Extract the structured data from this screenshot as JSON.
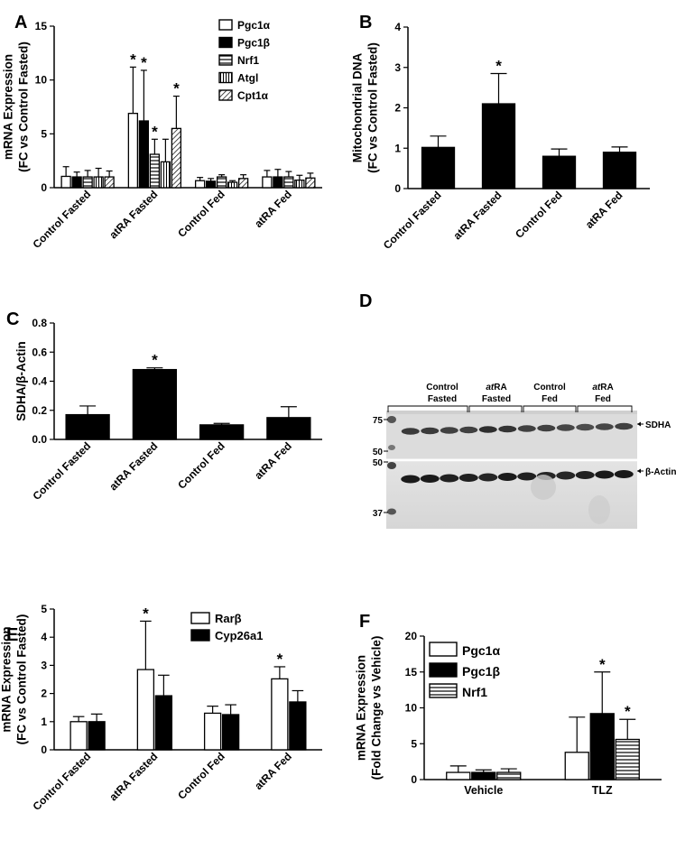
{
  "chart_data": [
    {
      "panel": "A",
      "type": "bar",
      "ylabel": [
        "mRNA Expression",
        "(FC vs Control Fasted)"
      ],
      "ylim": [
        0,
        15
      ],
      "yticks": [
        0,
        5,
        10,
        15
      ],
      "categories": [
        "Control Fasted",
        "atRA Fasted",
        "Control Fed",
        "atRA Fed"
      ],
      "series": [
        {
          "name": "Pgc1α",
          "fill": "white",
          "values": [
            1.05,
            6.9,
            0.65,
            1.0
          ],
          "errors": [
            0.9,
            4.3,
            0.3,
            0.6
          ],
          "sig": [
            false,
            true,
            false,
            false
          ]
        },
        {
          "name": "Pgc1β",
          "fill": "black",
          "values": [
            1.0,
            6.2,
            0.6,
            1.0
          ],
          "errors": [
            0.45,
            4.7,
            0.25,
            0.7
          ],
          "sig": [
            false,
            true,
            false,
            false
          ]
        },
        {
          "name": "Nrf1",
          "fill": "hlines",
          "values": [
            1.0,
            3.1,
            1.0,
            1.0
          ],
          "errors": [
            0.6,
            1.4,
            0.2,
            0.5
          ],
          "sig": [
            false,
            true,
            false,
            false
          ]
        },
        {
          "name": "Atgl",
          "fill": "vlines",
          "values": [
            1.0,
            2.4,
            0.5,
            0.7
          ],
          "errors": [
            0.8,
            2.1,
            0.15,
            0.45
          ],
          "sig": [
            false,
            false,
            false,
            false
          ]
        },
        {
          "name": "Cpt1α",
          "fill": "diag",
          "values": [
            1.0,
            5.5,
            0.85,
            0.9
          ],
          "errors": [
            0.55,
            3.0,
            0.35,
            0.45
          ],
          "sig": [
            false,
            true,
            false,
            false
          ]
        }
      ],
      "legend_position": "top-right"
    },
    {
      "panel": "B",
      "type": "bar",
      "ylabel": [
        "Mitochondrial DNA",
        "(FC vs Control Fasted)"
      ],
      "ylim": [
        0,
        4
      ],
      "yticks": [
        0,
        1,
        2,
        3,
        4
      ],
      "categories": [
        "Control Fasted",
        "atRA Fasted",
        "Control Fed",
        "atRA Fed"
      ],
      "series": [
        {
          "name": "Mitochondrial DNA",
          "fill": "black",
          "values": [
            1.02,
            2.1,
            0.8,
            0.9
          ],
          "errors": [
            0.28,
            0.75,
            0.18,
            0.13
          ],
          "sig": [
            false,
            true,
            false,
            false
          ]
        }
      ]
    },
    {
      "panel": "C",
      "type": "bar",
      "ylabel": [
        "SDHA/β-Actin"
      ],
      "ylim": [
        0,
        0.8
      ],
      "yticks": [
        0.0,
        0.2,
        0.4,
        0.6,
        0.8
      ],
      "ytick_labels": [
        "0.0",
        "0.2",
        "0.4",
        "0.6",
        "0.8"
      ],
      "categories": [
        "Control Fasted",
        "atRA Fasted",
        "Control Fed",
        "atRA Fed"
      ],
      "series": [
        {
          "name": "SDHA/β-Actin",
          "fill": "black",
          "values": [
            0.17,
            0.48,
            0.1,
            0.15
          ],
          "errors": [
            0.06,
            0.012,
            0.01,
            0.075
          ],
          "sig": [
            false,
            true,
            false,
            false
          ]
        }
      ]
    },
    {
      "panel": "E",
      "type": "bar",
      "ylabel": [
        "mRNA Expression",
        "(FC vs Control Fasted)"
      ],
      "ylim": [
        0,
        5
      ],
      "yticks": [
        0,
        1,
        2,
        3,
        4,
        5
      ],
      "categories": [
        "Control Fasted",
        "atRA Fasted",
        "Control Fed",
        "atRA Fed"
      ],
      "series": [
        {
          "name": "Rarβ",
          "fill": "white",
          "values": [
            1.0,
            2.85,
            1.3,
            2.52
          ],
          "errors": [
            0.18,
            1.72,
            0.25,
            0.43
          ],
          "sig": [
            false,
            true,
            false,
            true
          ]
        },
        {
          "name": "Cyp26a1",
          "fill": "black",
          "values": [
            1.0,
            1.92,
            1.25,
            1.7
          ],
          "errors": [
            0.27,
            0.73,
            0.35,
            0.4
          ],
          "sig": [
            false,
            false,
            false,
            false
          ]
        }
      ],
      "legend_position": "top-right"
    },
    {
      "panel": "F",
      "type": "bar",
      "ylabel": [
        "mRNA Expression",
        "(Fold Change vs Vehicle)"
      ],
      "ylim": [
        0,
        20
      ],
      "yticks": [
        0,
        5,
        10,
        15,
        20
      ],
      "categories": [
        "Vehicle",
        "TLZ"
      ],
      "series": [
        {
          "name": "Pgc1α",
          "fill": "white",
          "values": [
            1.0,
            3.8
          ],
          "errors": [
            0.9,
            4.9
          ],
          "sig": [
            false,
            false
          ]
        },
        {
          "name": "Pgc1β",
          "fill": "black",
          "values": [
            1.0,
            9.2
          ],
          "errors": [
            0.35,
            5.8
          ],
          "sig": [
            false,
            true
          ]
        },
        {
          "name": "Nrf1",
          "fill": "hlines",
          "values": [
            1.0,
            5.6
          ],
          "errors": [
            0.5,
            2.8
          ],
          "sig": [
            false,
            true
          ]
        }
      ],
      "legend_position": "top-left"
    }
  ],
  "blot": {
    "panel": "D",
    "groups": [
      {
        "line1": "Control",
        "line2": "Fasted",
        "italic_prefix": ""
      },
      {
        "line1": "RA",
        "line2": "Fasted",
        "italic_prefix": "at"
      },
      {
        "line1": "Control",
        "line2": "Fed",
        "italic_prefix": ""
      },
      {
        "line1": "RA",
        "line2": "Fed",
        "italic_prefix": "at"
      }
    ],
    "markers_top": [
      "75",
      "50"
    ],
    "markers_bottom": [
      "50",
      "37"
    ],
    "band_top": "SDHA",
    "band_bottom": "β-Actin"
  },
  "significance_marker": "*"
}
